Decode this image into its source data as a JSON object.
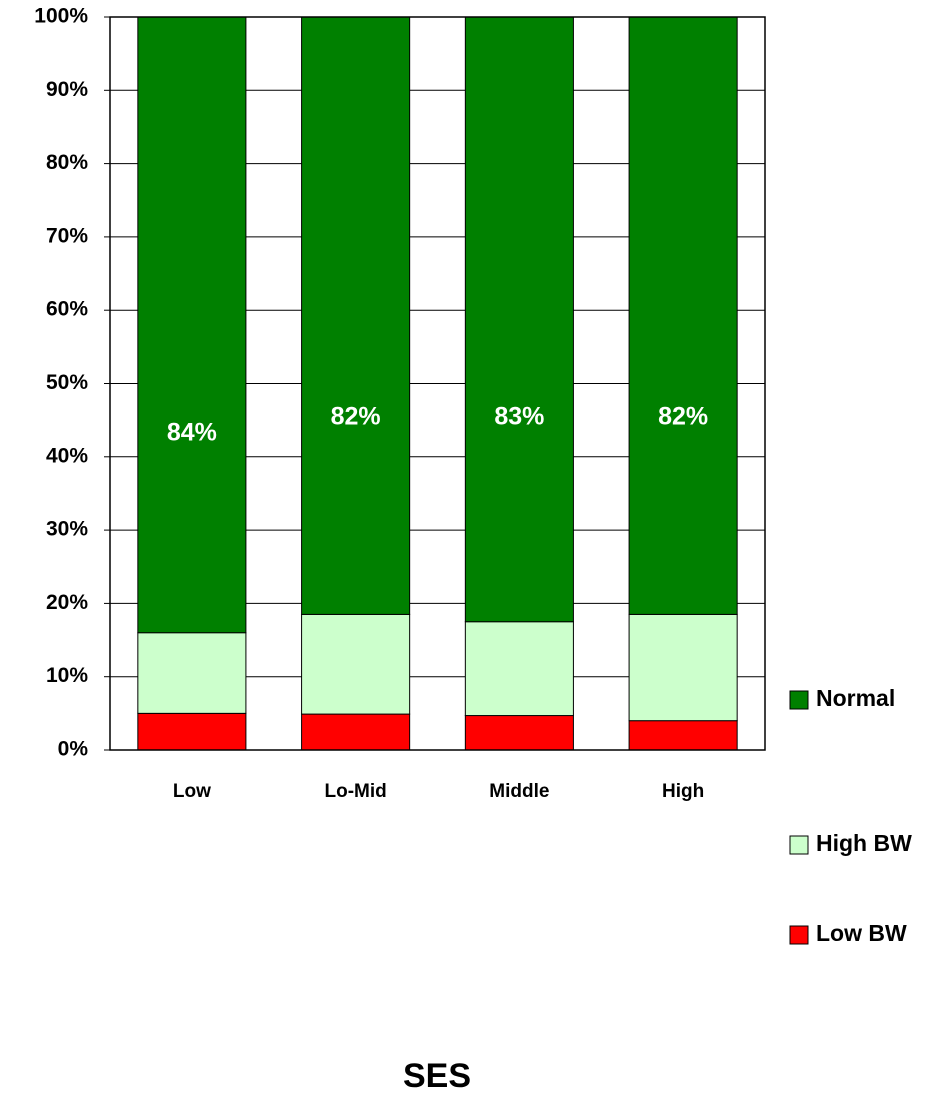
{
  "chart_data": {
    "type": "stacked_bar",
    "x_label": "SES",
    "categories": [
      "Low",
      "Lo-Mid",
      "Middle",
      "High"
    ],
    "series": [
      {
        "name": "Low BW",
        "color": "#ff0000",
        "values": [
          5,
          4.9,
          4.7,
          4
        ]
      },
      {
        "name": "High BW",
        "color": "#ccffcc",
        "values": [
          11,
          13.6,
          12.8,
          14.5
        ]
      },
      {
        "name": "Normal",
        "color": "#008000",
        "values": [
          84,
          81.5,
          82.5,
          81.5
        ],
        "value_labels": [
          "84%",
          "82%",
          "83%",
          "82%"
        ]
      }
    ],
    "ylim": [
      0,
      100
    ],
    "yticks": [
      {
        "value": 0,
        "label": "0%"
      },
      {
        "value": 10,
        "label": "10%"
      },
      {
        "value": 20,
        "label": "20%"
      },
      {
        "value": 30,
        "label": "30%"
      },
      {
        "value": 40,
        "label": "40%"
      },
      {
        "value": 50,
        "label": "50%"
      },
      {
        "value": 60,
        "label": "60%"
      },
      {
        "value": 70,
        "label": "70%"
      },
      {
        "value": 80,
        "label": "80%"
      },
      {
        "value": 90,
        "label": "90%"
      },
      {
        "value": 100,
        "label": "100%"
      }
    ],
    "grid": true,
    "legend": "right"
  }
}
